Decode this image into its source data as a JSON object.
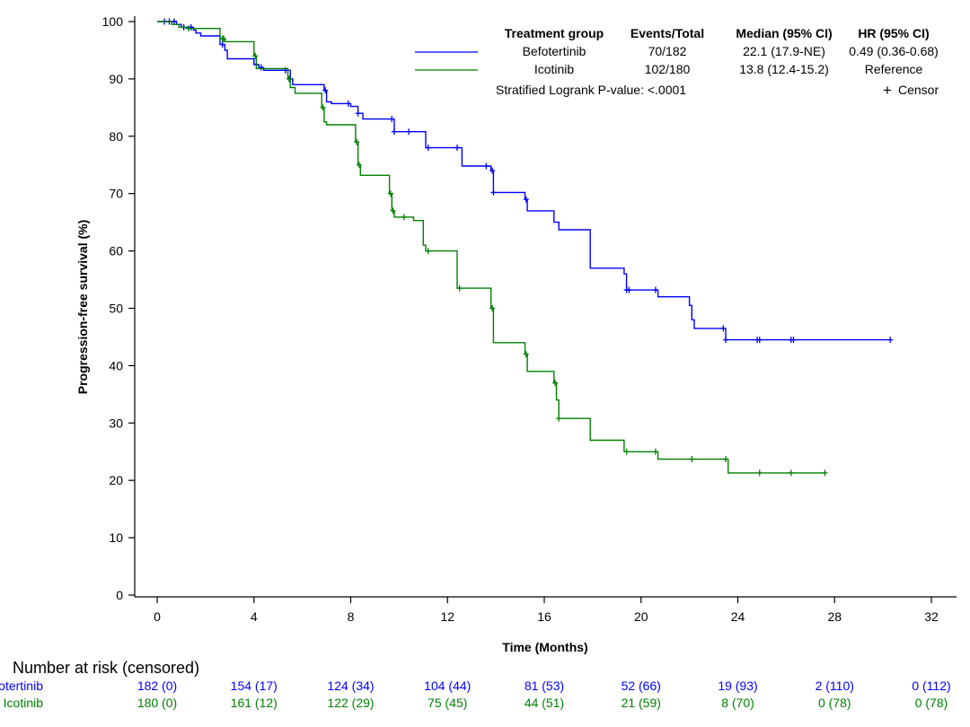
{
  "chart_data": {
    "type": "line",
    "subtype": "kaplan-meier step",
    "xlabel": "Time (Months)",
    "ylabel": "Progression-free survival (%)",
    "xlim": [
      0,
      32
    ],
    "ylim": [
      0,
      100
    ],
    "x_ticks": [
      "0",
      "4",
      "8",
      "12",
      "16",
      "20",
      "24",
      "28",
      "32"
    ],
    "y_ticks": [
      "0",
      "10",
      "20",
      "30",
      "40",
      "50",
      "60",
      "70",
      "80",
      "90",
      "100"
    ],
    "grid": false,
    "legend": {
      "position": "top-right",
      "headers": {
        "group": "Treatment group",
        "events": "Events/Total",
        "median": "Median (95% CI)",
        "hr": "HR (95% CI)"
      },
      "rows": [
        {
          "name": "Befotertinib",
          "events": "70/182",
          "median": "22.1 (17.9-NE)",
          "hr": "0.49 (0.36-0.68)"
        },
        {
          "name": "Icotinib",
          "events": "102/180",
          "median": "13.8 (12.4-15.2)",
          "hr": "Reference"
        }
      ],
      "pvalue": "Stratified Logrank P-value: <.0001",
      "censor_label": "Censor",
      "censor_symbol": "+"
    },
    "series": [
      {
        "name": "Befotertinib",
        "color": "#0000ff",
        "x": [
          0,
          0.8,
          1.0,
          1.5,
          1.6,
          1.8,
          2.6,
          2.8,
          2.9,
          4.0,
          4.2,
          4.4,
          5.0,
          5.5,
          5.6,
          6.9,
          7.0,
          7.2,
          8.0,
          8.3,
          8.5,
          9.8,
          11.1,
          12.6,
          13.8,
          13.9,
          15.2,
          15.3,
          16.4,
          16.6,
          17.9,
          19.3,
          19.4,
          20.7,
          22.0,
          22.1,
          22.2,
          23.5,
          30.3
        ],
        "y": [
          100,
          99.5,
          99.0,
          98.5,
          98.0,
          97.5,
          96.0,
          95.0,
          93.5,
          92.5,
          92.0,
          91.5,
          91.5,
          90.0,
          89.0,
          88.0,
          86.0,
          85.7,
          85.2,
          84.0,
          83.0,
          80.8,
          78.0,
          74.8,
          74.0,
          70.2,
          69.0,
          67.0,
          65.0,
          63.7,
          57.0,
          56.0,
          53.2,
          52.0,
          50.5,
          48.0,
          46.5,
          44.5,
          44.5
        ],
        "censor_x": [
          0.3,
          0.5,
          0.7,
          1.1,
          1.4,
          2.7,
          4.1,
          4.3,
          5.3,
          6.95,
          7.9,
          8.3,
          9.7,
          9.8,
          10.4,
          11.2,
          12.4,
          13.6,
          13.85,
          13.9,
          15.25,
          19.4,
          19.5,
          20.6,
          23.4,
          23.5,
          24.8,
          24.9,
          26.2,
          26.3,
          30.3
        ],
        "risk_at_time": [
          "182 (0)",
          "154 (17)",
          "124 (34)",
          "104 (44)",
          "81 (53)",
          "52 (66)",
          "19 (93)",
          "2 (110)",
          "0 (112)"
        ]
      },
      {
        "name": "Icotinib",
        "color": "#008000",
        "x": [
          0,
          0.6,
          0.9,
          1.2,
          2.6,
          2.8,
          4.0,
          4.1,
          5.4,
          5.5,
          5.7,
          6.8,
          6.9,
          7.0,
          8.2,
          8.3,
          8.4,
          9.6,
          9.7,
          9.8,
          10.6,
          11.0,
          11.1,
          12.4,
          13.8,
          13.9,
          15.2,
          15.3,
          16.4,
          16.5,
          16.6,
          17.9,
          19.3,
          20.7,
          23.6,
          27.6
        ],
        "y": [
          100,
          99.5,
          99.0,
          98.8,
          97.0,
          96.5,
          94.0,
          91.8,
          90.0,
          88.5,
          87.5,
          85.0,
          82.5,
          82.0,
          79.0,
          75.0,
          73.2,
          70.0,
          67.0,
          65.9,
          65.3,
          61.0,
          60.0,
          53.5,
          50.0,
          44.0,
          42.0,
          39.0,
          37.0,
          34.0,
          30.8,
          27.0,
          25.0,
          23.7,
          21.3,
          21.3
        ],
        "censor_x": [
          1.3,
          2.7,
          2.75,
          4.05,
          5.45,
          6.85,
          8.25,
          8.35,
          9.65,
          9.75,
          10.2,
          11.2,
          12.5,
          13.85,
          15.25,
          16.45,
          16.6,
          19.4,
          20.6,
          22.1,
          23.5,
          24.9,
          26.2,
          27.6
        ],
        "risk_at_time": [
          "180 (0)",
          "161 (12)",
          "122 (29)",
          "75 (45)",
          "44 (51)",
          "21 (59)",
          "8 (70)",
          "0 (78)",
          "0 (78)"
        ]
      }
    ]
  },
  "risk_table": {
    "title": "Number at risk (censored)",
    "rows": [
      {
        "name": "Befotertinib",
        "color": "#0000ff",
        "values": [
          "182 (0)",
          "154 (17)",
          "124 (34)",
          "104 (44)",
          "81 (53)",
          "52 (66)",
          "19 (93)",
          "2 (110)",
          "0 (112)"
        ]
      },
      {
        "name": "Icotinib",
        "color": "#008000",
        "values": [
          "180 (0)",
          "161 (12)",
          "122 (29)",
          "75 (45)",
          "44 (51)",
          "21 (59)",
          "8 (70)",
          "0 (78)",
          "0 (78)"
        ]
      }
    ]
  }
}
